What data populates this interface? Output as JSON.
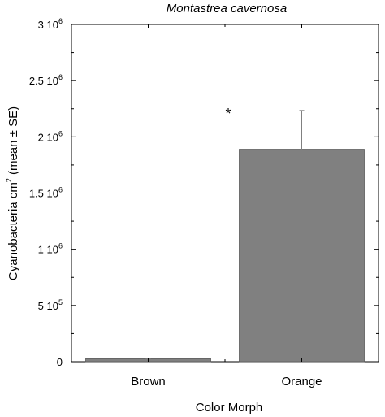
{
  "chart_data": {
    "type": "bar",
    "title": "Montastrea cavernosa",
    "xlabel": "Color Morph",
    "ylabel": {
      "text": "Cyanobacteria cm",
      "superscript": "2",
      "suffix": " (mean ± SE)"
    },
    "categories": [
      "Brown",
      "Orange"
    ],
    "values": [
      27000,
      1890000
    ],
    "errors": [
      4000,
      345000
    ],
    "ylim": [
      0,
      3000000
    ],
    "yticks": [
      {
        "value": 0,
        "mantissa": "0",
        "exponent": ""
      },
      {
        "value": 500000,
        "mantissa": "5 10",
        "exponent": "5"
      },
      {
        "value": 1000000,
        "mantissa": "1 10",
        "exponent": "6"
      },
      {
        "value": 1500000,
        "mantissa": "1.5 10",
        "exponent": "6"
      },
      {
        "value": 2000000,
        "mantissa": "2 10",
        "exponent": "6"
      },
      {
        "value": 2500000,
        "mantissa": "2.5 10",
        "exponent": "6"
      },
      {
        "value": 3000000,
        "mantissa": "3 10",
        "exponent": "6"
      }
    ],
    "annotation": "*",
    "grid": false,
    "bar_color": "#808080",
    "error_color": "#808080"
  }
}
